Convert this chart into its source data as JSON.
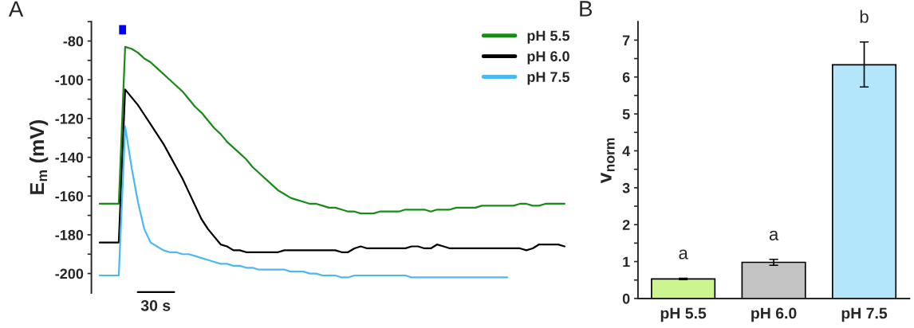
{
  "chart_data": [
    {
      "type": "line",
      "title": "A",
      "ylabel": "E$_{m}$ (mV)",
      "categories": [
        null,
        null,
        null,
        null,
        null,
        null,
        null,
        null,
        null,
        null,
        null,
        null,
        null,
        null,
        null,
        null,
        null,
        null,
        null,
        null,
        null,
        null,
        null,
        null,
        null,
        null,
        null,
        null,
        null,
        null,
        null,
        null,
        null,
        null,
        null,
        null,
        null,
        null,
        null,
        null,
        null,
        null,
        null,
        null,
        null,
        null,
        null,
        null,
        null,
        null,
        null,
        null,
        null,
        null,
        null,
        null,
        null,
        null,
        null,
        null,
        null,
        null,
        null,
        null,
        null,
        null,
        null,
        null,
        null,
        null,
        null,
        null,
        null,
        null
      ],
      "series": [
        {
          "name": "pH 5.5",
          "color": "#1a8a1a",
          "values": [
            -164,
            -164,
            -164,
            -164,
            -83,
            -84,
            -86,
            -89,
            -91,
            -94,
            -97,
            -100,
            -103,
            -106,
            -110,
            -114,
            -117,
            -121,
            -125,
            -128,
            -132,
            -135,
            -138,
            -141,
            -145,
            -148,
            -151,
            -154,
            -157,
            -159,
            -161,
            -162,
            -163,
            -164,
            -164,
            -165,
            -166,
            -166,
            -167,
            -168,
            -168,
            -169,
            -169,
            -169,
            -168,
            -168,
            -168,
            -168,
            -167,
            -167,
            -167,
            -167,
            -168,
            -167,
            -167,
            -167,
            -166,
            -166,
            -166,
            -166,
            -165,
            -165,
            -165,
            -165,
            -165,
            -165,
            -164,
            -164,
            -165,
            -165,
            -164,
            -164,
            -164,
            -164
          ]
        },
        {
          "name": "pH 6.0",
          "color": "#000000",
          "values": [
            -184,
            -184,
            -184,
            -184,
            -105,
            -109,
            -113,
            -118,
            -123,
            -128,
            -133,
            -139,
            -145,
            -151,
            -158,
            -165,
            -172,
            -177,
            -181,
            -185,
            -186,
            -188,
            -188,
            -189,
            -189,
            -189,
            -189,
            -189,
            -189,
            -188,
            -188,
            -188,
            -188,
            -188,
            -188,
            -188,
            -188,
            -188,
            -189,
            -189,
            -187,
            -186,
            -187,
            -187,
            -187,
            -187,
            -187,
            -187,
            -187,
            -186,
            -186,
            -187,
            -187,
            -185,
            -186,
            -187,
            -187,
            -187,
            -187,
            -187,
            -187,
            -187,
            -187,
            -187,
            -187,
            -187,
            -187,
            -188,
            -187,
            -185,
            -185,
            -185,
            -185,
            -186
          ]
        },
        {
          "name": "pH 7.5",
          "color": "#4cb8f0",
          "values": [
            -201,
            -201,
            -201,
            -201,
            -124,
            -145,
            -163,
            -177,
            -184,
            -186,
            -188,
            -189,
            -189,
            -190,
            -190,
            -191,
            -192,
            -193,
            -194,
            -195,
            -195,
            -196,
            -196,
            -197,
            -197,
            -198,
            -198,
            -198,
            -198,
            -198,
            -199,
            -199,
            -199,
            -200,
            -200,
            -201,
            -201,
            -201,
            -202,
            -202,
            -201,
            -201,
            -201,
            -201,
            -201,
            -201,
            -201,
            -201,
            -201,
            -202,
            -202,
            -202,
            -202,
            -202,
            -202,
            -202,
            -202,
            -202,
            -202,
            -202,
            -202,
            -202,
            -202,
            -202,
            -202,
            null,
            null,
            null,
            null,
            null,
            null,
            null,
            null,
            null
          ]
        }
      ],
      "ylim": [
        -210,
        -70
      ],
      "yticks": [
        {
          "value": -70,
          "label": null
        },
        -80,
        {
          "value": -90,
          "label": null
        },
        -100,
        {
          "value": -110,
          "label": null
        },
        -120,
        {
          "value": -130,
          "label": null
        },
        -140,
        {
          "value": -150,
          "label": null
        },
        -160,
        {
          "value": -170,
          "label": null
        },
        -180,
        {
          "value": -190,
          "label": null
        },
        -200
      ],
      "tick_labels": "y",
      "legend": "top right",
      "grid": false,
      "marker": "none",
      "line_style": "solid",
      "annotations": [
        "30 s"
      ]
    },
    {
      "type": "bar",
      "title": "B",
      "ylabel": "v$_{norm}$",
      "categories": [
        "pH 5.5",
        "pH 6.0",
        "pH 7.5"
      ],
      "values": [
        0.53,
        0.98,
        6.33
      ],
      "colors": [
        "#ccf590",
        "#c3c3c3",
        "#b3e5fb"
      ],
      "errors": [
        0.02,
        0.08,
        [
          5.73,
          6.95
        ]
      ],
      "ylim": [
        0,
        7.5
      ],
      "yticks": [
        0,
        {
          "value": 0.5,
          "label": null
        },
        1,
        {
          "value": 1.5,
          "label": null
        },
        2,
        {
          "value": 2.5,
          "label": null
        },
        3,
        {
          "value": 3.5,
          "label": null
        },
        4,
        {
          "value": 4.5,
          "label": null
        },
        5,
        {
          "value": 5.5,
          "label": null
        },
        6,
        {
          "value": 6.5,
          "label": null
        },
        7
      ],
      "grid": false,
      "legend": false,
      "annotations": [
        "a",
        "a",
        "b"
      ]
    }
  ]
}
